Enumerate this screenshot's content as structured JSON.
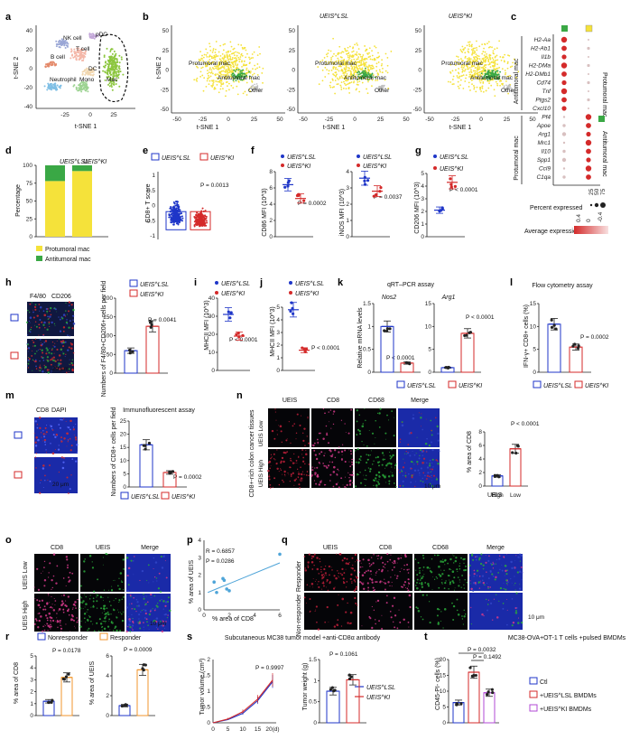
{
  "panel_letters": [
    "a",
    "b",
    "c",
    "d",
    "e",
    "f",
    "g",
    "h",
    "i",
    "j",
    "k",
    "l",
    "m",
    "n",
    "o",
    "p",
    "q",
    "r",
    "s",
    "t"
  ],
  "colors": {
    "protumoral": "#f5e23a",
    "antitumoral": "#3aa845",
    "wt": "#1f36c8",
    "ko": "#d42a2a",
    "orange": "#f0962c",
    "cyan": "#4ea4d8",
    "purple": "#b24ad6"
  },
  "tsne": {
    "xlabel": "t-SNE 1",
    "ylabel": "t-SNE 2",
    "a_xticks": [
      "-25",
      "0",
      "25"
    ],
    "a_yticks": [
      "40",
      "20",
      "0",
      "-20",
      "-40"
    ],
    "b_xticks": [
      "-50",
      "-25",
      "0",
      "25",
      "50"
    ],
    "b_yticks": [
      "50",
      "25",
      "0",
      "-25",
      "-50"
    ],
    "a_clusters": [
      "NK cell",
      "pDC",
      "T cell",
      "B cell",
      "DC",
      "Neutrophil",
      "Mono",
      "Mac"
    ],
    "b_titles": [
      "",
      "UEIS^LSL",
      "UEIS^KI"
    ],
    "b_labels": [
      "Protumoral mac",
      "Antitumoral mac",
      "Other"
    ]
  },
  "c": {
    "genes_anti": [
      "H2-Aa",
      "H2-Ab1",
      "Il1b",
      "H2-DMa",
      "H2-DMb1",
      "Cd74",
      "Tnf",
      "Ptgs2",
      "Cxcl10"
    ],
    "genes_pro": [
      "Pf4",
      "Apoe",
      "Arg1",
      "Mrc1",
      "Il10",
      "Spp1",
      "Ccl9",
      "C1qa"
    ],
    "group_anti": "Antitumoral mac",
    "group_pro": "Protumoral mac",
    "col_labels": [
      "Protumoral mac",
      "Antitumoral mac"
    ],
    "size_title": "Percent expressed",
    "size_ticks": [
      "25",
      "50",
      "75"
    ],
    "color_title": "Average expression",
    "color_ticks": [
      "0.4",
      "0",
      "-0.4"
    ]
  },
  "d": {
    "ylabel": "Percentage",
    "yticks": [
      "100",
      "75",
      "50",
      "25",
      "0"
    ],
    "groups": [
      "UEIS^LSL",
      "UEIS^KI"
    ],
    "legend": [
      "Protumoral mac",
      "Antitumoral mac"
    ]
  },
  "e": {
    "ylabel": "CD8+ T score",
    "legend": [
      "UEIS^LSL",
      "UEIS^KI"
    ],
    "p": "P = 0.0013",
    "yticks": [
      "1",
      "0.5",
      "0",
      "-0.5",
      "-1"
    ]
  },
  "f": {
    "p1": "P = 0.0002",
    "p2": "P = 0.0037",
    "y1": "CD86 MFI (10^3)",
    "y2": "iNOS MFI (10^3)",
    "legend": [
      "UEIS^LSL",
      "UEIS^KI"
    ]
  },
  "g": {
    "p": "P < 0.0001",
    "y": "CD206 MFI (10^3)",
    "legend": [
      "UEIS^LSL",
      "UEIS^KI"
    ]
  },
  "h": {
    "stain": [
      "F4/80",
      "CD206"
    ],
    "scale": "20 μm",
    "ylabel": "Numbers of F4/80+CD206+ cells per field",
    "p": "P = 0.0041",
    "legend": [
      "UEIS^LSL",
      "UEIS^KI"
    ]
  },
  "i": {
    "ylabel": "MHCII MFI (10^3)",
    "p": "P < 0.0001",
    "legend": [
      "UEIS^LSL",
      "UEIS^KI"
    ]
  },
  "j": {
    "ylabel": "MHCII MFI (10^3)",
    "p": "P < 0.0001",
    "legend": [
      "UEIS^LSL",
      "UEIS^KI"
    ]
  },
  "k": {
    "title": "qRT–PCR assay",
    "genes": [
      "Nos2",
      "Arg1"
    ],
    "ylabel": "Relative mRNA levels",
    "p1": "P < 0.0001",
    "p2": "P < 0.0001",
    "legend": [
      "UEIS^LSL",
      "UEIS^KI"
    ]
  },
  "l": {
    "title": "Flow cytometry assay",
    "ylabel": "IFN-γ+ CD8+ cells (%)",
    "p": "P = 0.0002",
    "legend": [
      "UEIS^LSL",
      "UEIS^KI"
    ]
  },
  "m": {
    "stain": [
      "CD8",
      "DAPI"
    ],
    "scale": "20 μm",
    "title": "Immunofluorescent assay",
    "ylabel": "Numbers of CD8+ cells per field",
    "p": "P = 0.0002",
    "legend": [
      "UEIS^LSL",
      "UEIS^KI"
    ]
  },
  "n": {
    "cols": [
      "UEIS",
      "CD8",
      "CD68",
      "Merge"
    ],
    "rows": [
      "UEIS Low",
      "UEIS High"
    ],
    "side": "CD8+-rich colon cancer tissues",
    "scale": "10 μm",
    "ylabel": "% area of CD8",
    "p": "P < 0.0001",
    "xlabel": "UEIS",
    "xcats": [
      "High",
      "Low"
    ]
  },
  "o": {
    "cols": [
      "CD8",
      "UEIS",
      "Merge"
    ],
    "rows": [
      "UEIS Low",
      "UEIS High"
    ],
    "scale": "10 μm"
  },
  "p": {
    "r": "R = 0.6857",
    "pv": "P = 0.0286",
    "xlabel": "% area of CD8",
    "ylabel": "% area of UEIS"
  },
  "q": {
    "cols": [
      "UEIS",
      "CD8",
      "CD68",
      "Merge"
    ],
    "rows": [
      "Responder",
      "Non-responder"
    ],
    "scale": "10 μm"
  },
  "r": {
    "legend": [
      "Nonresponder",
      "Responder"
    ],
    "p1": "P = 0.0178",
    "p2": "P = 0.0009",
    "y1": "% area of CD8",
    "y2": "% area of UEIS"
  },
  "s": {
    "title": "Subcutaneous MC38 tumor model +anti-CD8α antibody",
    "p1": "P = 0.9997",
    "p2": "P = 0.1061",
    "y1": "Tumor volume (cm³)",
    "y2": "Tumor weight (g)",
    "xticks": [
      "0",
      "5",
      "10",
      "15",
      "20(d)"
    ],
    "legend": [
      "UEIS^LSL",
      "UEIS^KI"
    ]
  },
  "t": {
    "title": "MC38-OVA+OT-1 T cells +pulsed BMDMs",
    "p1": "P = 0.0032",
    "p2": "P = 0.1492",
    "ylabel": "CD45-PI- cells (%)",
    "legend": [
      "Ctl",
      "+UEIS^LSL BMDMs",
      "+UEIS^KI BMDMs"
    ]
  },
  "chart_data": [
    {
      "panel": "d",
      "type": "bar",
      "categories": [
        "UEIS^LSL",
        "UEIS^KI"
      ],
      "series": [
        {
          "name": "Protumoral mac",
          "values": [
            78,
            92
          ]
        },
        {
          "name": "Antitumoral mac",
          "values": [
            22,
            8
          ]
        }
      ],
      "ylim": [
        0,
        100
      ]
    },
    {
      "panel": "e",
      "type": "scatter",
      "categories": [
        "UEIS^LSL",
        "UEIS^KI"
      ],
      "ylim": [
        -1,
        1
      ]
    },
    {
      "panel": "f-CD86",
      "type": "bar",
      "categories": [
        "UEIS^LSL",
        "UEIS^KI"
      ],
      "values": [
        6.4,
        4.7
      ],
      "ylim": [
        0,
        8
      ],
      "yticks": [
        0,
        2,
        4,
        6,
        8
      ]
    },
    {
      "panel": "f-iNOS",
      "type": "bar",
      "categories": [
        "UEIS^LSL",
        "UEIS^KI"
      ],
      "values": [
        3.6,
        2.8
      ],
      "ylim": [
        0,
        4
      ],
      "yticks": [
        0,
        1,
        2,
        3,
        4
      ]
    },
    {
      "panel": "g",
      "type": "bar",
      "categories": [
        "UEIS^LSL",
        "UEIS^KI"
      ],
      "values": [
        2.1,
        4.3
      ],
      "ylim": [
        0,
        5
      ],
      "yticks": [
        0,
        1,
        2,
        3,
        4,
        5
      ]
    },
    {
      "panel": "h",
      "type": "bar",
      "categories": [
        "UEIS^LSL",
        "UEIS^KI"
      ],
      "values": [
        60,
        125
      ],
      "ylim": [
        0,
        200
      ],
      "yticks": [
        0,
        50,
        100,
        150,
        200
      ]
    },
    {
      "panel": "i",
      "type": "bar",
      "categories": [
        "UEIS^LSL",
        "UEIS^KI"
      ],
      "values": [
        31,
        19
      ],
      "ylim": [
        0,
        40
      ],
      "yticks": [
        0,
        10,
        20,
        30,
        40
      ]
    },
    {
      "panel": "j",
      "type": "bar",
      "categories": [
        "UEIS^LSL",
        "UEIS^KI"
      ],
      "values": [
        4.8,
        1.6
      ],
      "ylim": [
        0,
        5
      ],
      "yticks": [
        0,
        1,
        2,
        3,
        4,
        5
      ]
    },
    {
      "panel": "k-Nos2",
      "type": "bar",
      "categories": [
        "UEIS^LSL",
        "UEIS^KI"
      ],
      "values": [
        1.0,
        0.2
      ],
      "ylim": [
        0,
        1.5
      ],
      "yticks": [
        0,
        0.5,
        1.0,
        1.5
      ]
    },
    {
      "panel": "k-Arg1",
      "type": "bar",
      "categories": [
        "UEIS^LSL",
        "UEIS^KI"
      ],
      "values": [
        1.0,
        8.5
      ],
      "ylim": [
        0,
        15
      ],
      "yticks": [
        0,
        5,
        10,
        15
      ]
    },
    {
      "panel": "l",
      "type": "bar",
      "categories": [
        "UEIS^LSL",
        "UEIS^KI"
      ],
      "values": [
        10.5,
        5.5
      ],
      "ylim": [
        0,
        15
      ],
      "yticks": [
        0,
        5,
        10,
        15
      ]
    },
    {
      "panel": "m",
      "type": "bar",
      "categories": [
        "UEIS^LSL",
        "UEIS^KI"
      ],
      "values": [
        16,
        5.5
      ],
      "ylim": [
        0,
        25
      ],
      "yticks": [
        0,
        5,
        10,
        15,
        20,
        25
      ]
    },
    {
      "panel": "n",
      "type": "bar",
      "categories": [
        "High",
        "Low"
      ],
      "values": [
        1.5,
        5.5
      ],
      "ylim": [
        0,
        8
      ],
      "yticks": [
        0,
        2,
        4,
        6,
        8
      ]
    },
    {
      "panel": "p",
      "type": "scatter",
      "x": [
        0.8,
        1.0,
        1.5,
        1.6,
        1.8,
        2.0,
        6.0
      ],
      "y": [
        1.6,
        1.0,
        1.8,
        1.7,
        1.2,
        1.1,
        3.2
      ],
      "xlim": [
        0,
        6
      ],
      "ylim": [
        0,
        4
      ],
      "xticks": [
        0,
        2,
        4,
        6
      ],
      "yticks": [
        0,
        1,
        2,
        3,
        4
      ]
    },
    {
      "panel": "r-CD8",
      "type": "bar",
      "categories": [
        "Nonresponder",
        "Responder"
      ],
      "values": [
        1.2,
        3.2
      ],
      "ylim": [
        0,
        5
      ],
      "yticks": [
        0,
        1,
        2,
        3,
        4,
        5
      ]
    },
    {
      "panel": "r-UEIS",
      "type": "bar",
      "categories": [
        "Nonresponder",
        "Responder"
      ],
      "values": [
        1.0,
        4.6
      ],
      "ylim": [
        0,
        6
      ],
      "yticks": [
        0,
        2,
        4,
        6
      ]
    },
    {
      "panel": "s-volume",
      "type": "line",
      "x": [
        0,
        5,
        10,
        15,
        20
      ],
      "series": [
        {
          "name": "UEIS^LSL",
          "values": [
            0,
            0.1,
            0.3,
            0.7,
            1.3
          ]
        },
        {
          "name": "UEIS^KI",
          "values": [
            0,
            0.12,
            0.35,
            0.75,
            1.35
          ]
        }
      ],
      "ylim": [
        0,
        2.0
      ],
      "yticks": [
        0,
        0.5,
        1.0,
        1.5,
        2.0
      ]
    },
    {
      "panel": "s-weight",
      "type": "bar",
      "categories": [
        "UEIS^LSL",
        "UEIS^KI"
      ],
      "values": [
        0.75,
        1.02
      ],
      "ylim": [
        0,
        1.5
      ],
      "yticks": [
        0,
        0.5,
        1.0,
        1.5
      ]
    },
    {
      "panel": "t",
      "type": "bar",
      "categories": [
        "Ctl",
        "+UEIS^LSL BMDMs",
        "+UEIS^KI BMDMs"
      ],
      "values": [
        6.4,
        16,
        9.5
      ],
      "ylim": [
        0,
        20
      ],
      "yticks": [
        0,
        5,
        10,
        15,
        20
      ]
    }
  ]
}
